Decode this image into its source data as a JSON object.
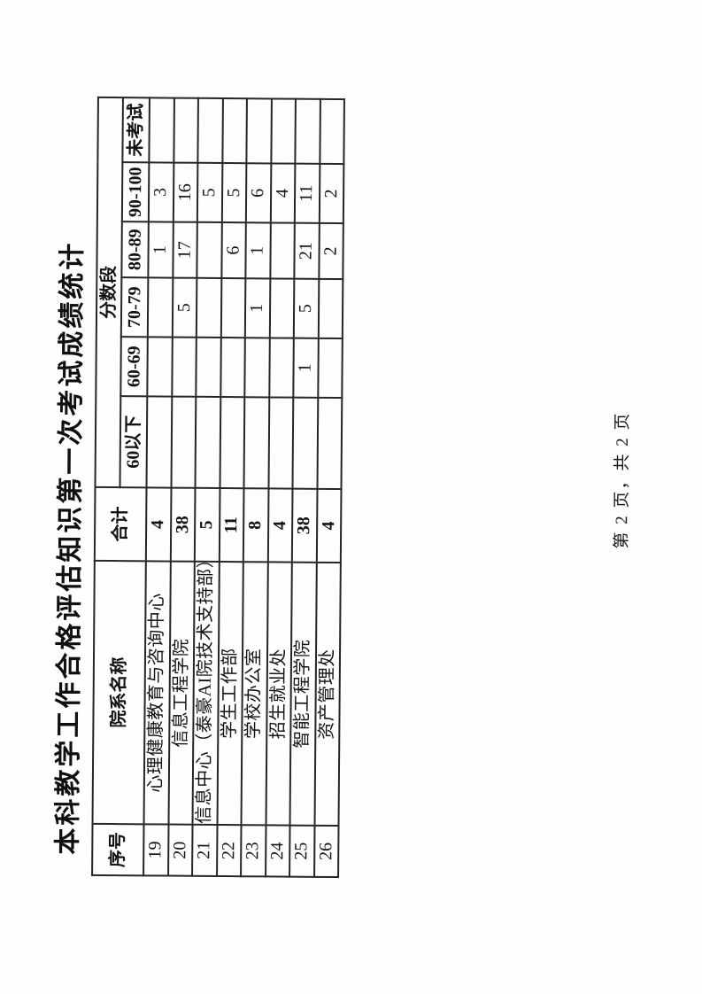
{
  "page": {
    "title": "本科教学工作合格评估知识第一次考试成绩统计",
    "footer": "第 2 页，共 2 页"
  },
  "table": {
    "headers": {
      "no": "序号",
      "dept": "院系名称",
      "total": "合计",
      "band_group": "分数段",
      "bands": [
        "60以下",
        "60-69",
        "70-79",
        "80-89",
        "90-100",
        "未考试"
      ]
    },
    "rows": [
      {
        "no": "19",
        "dept": "心理健康教育与咨询中心",
        "total": "4",
        "bands": [
          "",
          "",
          "",
          "1",
          "3",
          ""
        ]
      },
      {
        "no": "20",
        "dept": "信息工程学院",
        "total": "38",
        "bands": [
          "",
          "",
          "5",
          "17",
          "16",
          ""
        ]
      },
      {
        "no": "21",
        "dept": "信息中心（泰豪AI院技术支持部）",
        "total": "5",
        "bands": [
          "",
          "",
          "",
          "",
          "5",
          ""
        ]
      },
      {
        "no": "22",
        "dept": "学生工作部",
        "total": "11",
        "bands": [
          "",
          "",
          "",
          "6",
          "5",
          ""
        ]
      },
      {
        "no": "23",
        "dept": "学校办公室",
        "total": "8",
        "bands": [
          "",
          "",
          "1",
          "1",
          "6",
          ""
        ]
      },
      {
        "no": "24",
        "dept": "招生就业处",
        "total": "4",
        "bands": [
          "",
          "",
          "",
          "",
          "4",
          ""
        ]
      },
      {
        "no": "25",
        "dept": "智能工程学院",
        "total": "38",
        "bands": [
          "",
          "1",
          "5",
          "21",
          "11",
          ""
        ]
      },
      {
        "no": "26",
        "dept": "资产管理处",
        "total": "4",
        "bands": [
          "",
          "",
          "",
          "2",
          "2",
          ""
        ]
      }
    ]
  }
}
